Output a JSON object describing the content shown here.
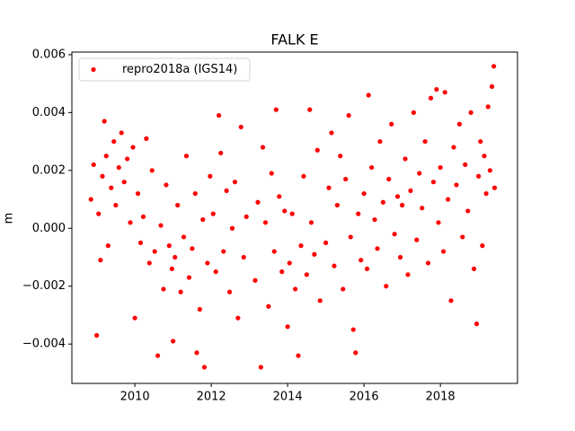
{
  "chart_data": {
    "type": "scatter",
    "title": "FALK E",
    "ylabel": "m",
    "legend": "upper left",
    "xlim": [
      2008.35,
      2020.02
    ],
    "xticks": [
      2010,
      2012,
      2014,
      2016,
      2018
    ],
    "ylim": [
      -0.00536,
      0.00609
    ],
    "yticks": [
      {
        "value": -0.004,
        "label": "−0.004"
      },
      {
        "value": -0.002,
        "label": "−0.002"
      },
      {
        "value": 0,
        "label": "0.000"
      },
      {
        "value": 0.002,
        "label": "0.002"
      },
      {
        "value": 0.004,
        "label": "0.004"
      },
      {
        "value": 0.006,
        "label": "0.006"
      }
    ],
    "x": [
      2008.85,
      2008.92,
      2009.0,
      2009.05,
      2009.1,
      2009.15,
      2009.2,
      2009.25,
      2009.3,
      2009.38,
      2009.45,
      2009.5,
      2009.58,
      2009.65,
      2009.72,
      2009.8,
      2009.88,
      2009.95,
      2010.0,
      2010.08,
      2010.15,
      2010.22,
      2010.3,
      2010.38,
      2010.45,
      2010.52,
      2010.6,
      2010.68,
      2010.75,
      2010.82,
      2010.9,
      2010.97,
      2011.0,
      2011.05,
      2011.12,
      2011.2,
      2011.28,
      2011.35,
      2011.42,
      2011.5,
      2011.58,
      2011.62,
      2011.7,
      2011.78,
      2011.82,
      2011.9,
      2011.97,
      2012.05,
      2012.12,
      2012.2,
      2012.25,
      2012.32,
      2012.4,
      2012.48,
      2012.55,
      2012.62,
      2012.7,
      2012.78,
      2012.85,
      2012.92,
      2013.15,
      2013.22,
      2013.3,
      2013.35,
      2013.42,
      2013.5,
      2013.58,
      2013.65,
      2013.7,
      2013.78,
      2013.85,
      2013.92,
      2014.0,
      2014.05,
      2014.12,
      2014.2,
      2014.28,
      2014.35,
      2014.42,
      2014.5,
      2014.58,
      2014.62,
      2014.7,
      2014.78,
      2014.85,
      2015.0,
      2015.08,
      2015.15,
      2015.22,
      2015.3,
      2015.38,
      2015.45,
      2015.52,
      2015.6,
      2015.65,
      2015.72,
      2015.78,
      2015.85,
      2015.92,
      2016.0,
      2016.08,
      2016.12,
      2016.2,
      2016.28,
      2016.35,
      2016.42,
      2016.5,
      2016.58,
      2016.65,
      2016.72,
      2016.8,
      2016.88,
      2016.95,
      2017.0,
      2017.08,
      2017.15,
      2017.22,
      2017.3,
      2017.38,
      2017.45,
      2017.52,
      2017.6,
      2017.68,
      2017.75,
      2017.82,
      2017.9,
      2017.95,
      2018.0,
      2018.08,
      2018.12,
      2018.2,
      2018.28,
      2018.35,
      2018.42,
      2018.5,
      2018.58,
      2018.65,
      2018.72,
      2018.8,
      2018.88,
      2018.95,
      2019.0,
      2019.05,
      2019.1,
      2019.15,
      2019.2,
      2019.25,
      2019.3,
      2019.35,
      2019.4,
      2019.42
    ],
    "series": [
      {
        "name": "repro2018a (IGS14)",
        "color": "#ff0000",
        "values": [
          0.001,
          0.0022,
          -0.0037,
          0.0005,
          -0.0011,
          0.0018,
          0.0037,
          0.0025,
          -0.0006,
          0.0014,
          0.003,
          0.0008,
          0.0021,
          0.0033,
          0.0016,
          0.0024,
          0.0002,
          0.0028,
          -0.0031,
          0.0012,
          -0.0005,
          0.0004,
          0.0031,
          -0.0012,
          0.002,
          -0.0008,
          -0.0044,
          0.0001,
          -0.0021,
          0.0015,
          -0.0006,
          -0.0014,
          -0.0039,
          -0.001,
          0.0008,
          -0.0022,
          -0.0003,
          0.0025,
          -0.0017,
          -0.0007,
          0.0012,
          -0.0043,
          -0.0028,
          0.0003,
          -0.0048,
          -0.0012,
          0.0018,
          0.0005,
          -0.0015,
          0.0039,
          0.0026,
          -0.0008,
          0.0013,
          -0.0022,
          0.0,
          0.0016,
          -0.0031,
          0.0035,
          -0.001,
          0.0004,
          -0.0018,
          0.0009,
          -0.0048,
          0.0028,
          0.0002,
          -0.0027,
          0.0019,
          -0.0008,
          0.0041,
          0.0011,
          -0.0015,
          0.0006,
          -0.0034,
          -0.0012,
          0.0005,
          -0.0021,
          -0.0044,
          -0.0006,
          0.0018,
          -0.0016,
          0.0041,
          0.0002,
          -0.0009,
          0.0027,
          -0.0025,
          -0.0005,
          0.0014,
          0.0033,
          -0.0013,
          0.0008,
          0.0025,
          -0.0021,
          0.0017,
          0.0039,
          -0.0003,
          -0.0035,
          -0.0043,
          0.0005,
          -0.0011,
          0.0012,
          -0.0014,
          0.0046,
          0.0021,
          0.0003,
          -0.0007,
          0.003,
          0.0009,
          -0.002,
          0.0017,
          0.0036,
          -0.0002,
          0.0011,
          -0.001,
          0.0008,
          0.0024,
          -0.0016,
          0.0013,
          0.004,
          -0.0004,
          0.0019,
          0.0007,
          0.003,
          -0.0012,
          0.0045,
          0.0016,
          0.0048,
          0.0002,
          0.0021,
          -0.0008,
          0.0047,
          0.001,
          -0.0025,
          0.0028,
          0.0015,
          0.0036,
          -0.0003,
          0.0022,
          0.0006,
          0.004,
          -0.0014,
          -0.0033,
          0.0018,
          0.003,
          -0.0006,
          0.0025,
          0.0012,
          0.0042,
          0.002,
          0.0049,
          0.0056,
          0.0014
        ]
      }
    ]
  }
}
